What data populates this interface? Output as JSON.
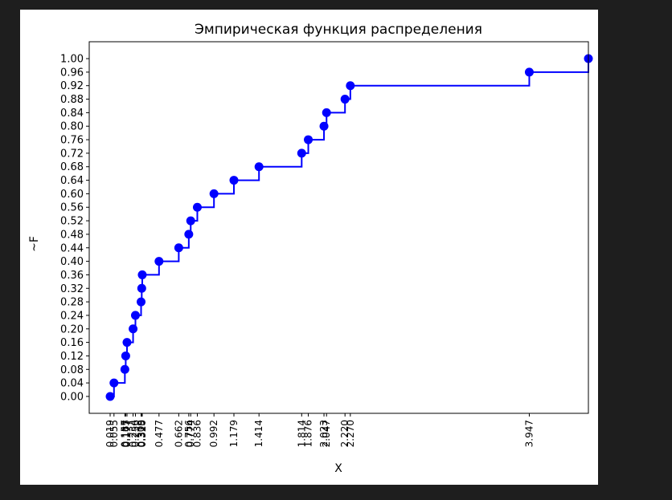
{
  "chart_data": {
    "type": "line",
    "step": "post",
    "title": "Эмпирическая функция распределения",
    "xlabel": "X",
    "ylabel": "~F",
    "grid": false,
    "color": "#0000ff",
    "xlim": [
      -0.177,
      4.501
    ],
    "ylim": [
      -0.05,
      1.05
    ],
    "x": [
      0.019,
      0.055,
      0.157,
      0.165,
      0.177,
      0.234,
      0.256,
      0.309,
      0.315,
      0.32,
      0.477,
      0.662,
      0.756,
      0.774,
      0.836,
      0.992,
      1.179,
      1.414,
      1.814,
      1.876,
      2.023,
      2.047,
      2.22,
      2.27,
      3.947,
      4.501
    ],
    "y": [
      0.0,
      0.04,
      0.08,
      0.12,
      0.16,
      0.2,
      0.24,
      0.28,
      0.32,
      0.36,
      0.4,
      0.44,
      0.48,
      0.52,
      0.56,
      0.6,
      0.64,
      0.68,
      0.72,
      0.76,
      0.8,
      0.84,
      0.88,
      0.92,
      0.96,
      1.0
    ],
    "xticks": [
      "0.019",
      "0.055",
      "0.157",
      "0.165",
      "0.177",
      "0.234",
      "0.256",
      "0.309",
      "0.315",
      "0.320",
      "0.477",
      "0.662",
      "0.756",
      "0.774",
      "0.836",
      "0.992",
      "1.179",
      "1.414",
      "1.814",
      "1.876",
      "2.023",
      "2.047",
      "2.220",
      "2.270",
      "3.947"
    ],
    "yticks": [
      "0.00",
      "0.04",
      "0.08",
      "0.12",
      "0.16",
      "0.20",
      "0.24",
      "0.28",
      "0.32",
      "0.36",
      "0.40",
      "0.44",
      "0.48",
      "0.52",
      "0.56",
      "0.60",
      "0.64",
      "0.68",
      "0.72",
      "0.76",
      "0.80",
      "0.84",
      "0.88",
      "0.92",
      "0.96",
      "1.00"
    ]
  }
}
